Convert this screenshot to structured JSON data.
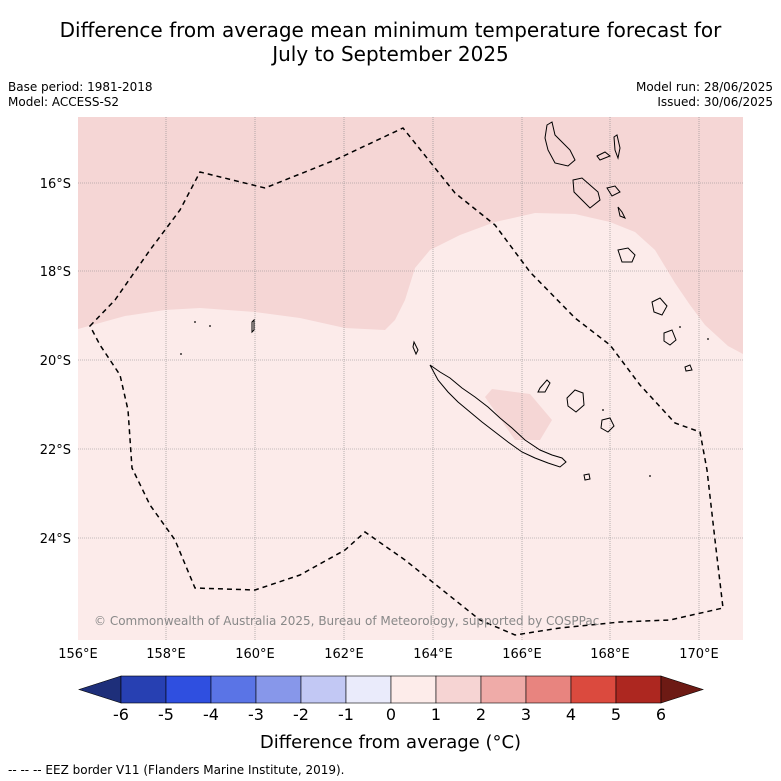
{
  "header": {
    "title_line1": "Difference from average mean minimum temperature forecast for",
    "title_line2": "July to September 2025"
  },
  "meta_left": {
    "base_period": "Base period: 1981-2018",
    "model": "Model: ACCESS-S2"
  },
  "meta_right": {
    "model_run": "Model run: 28/06/2025",
    "issued": "Issued: 30/06/2025"
  },
  "map": {
    "lon_labels": [
      "156°E",
      "158°E",
      "160°E",
      "162°E",
      "164°E",
      "166°E",
      "168°E",
      "170°E"
    ],
    "lat_labels": [
      "16°S",
      "18°S",
      "20°S",
      "22°S",
      "24°S"
    ],
    "copyright": "© Commonwealth of Australia 2025, Bureau of Meteorology, supported by COSPPac",
    "colors": {
      "anomaly_0_1": "#fcebea",
      "anomaly_1_2": "#f5d6d5",
      "ocean_frame": "#777777"
    }
  },
  "colorbar": {
    "ticks": [
      "-6",
      "-5",
      "-4",
      "-3",
      "-2",
      "-1",
      "0",
      "1",
      "2",
      "3",
      "4",
      "5",
      "6"
    ],
    "colors": [
      "#1e2f7a",
      "#2740b2",
      "#2f4fe0",
      "#5a74e6",
      "#8797ea",
      "#c2c8f4",
      "#eaebfb",
      "#fdecea",
      "#f6d4d3",
      "#efaba8",
      "#e8847f",
      "#db4a3e",
      "#ad2720",
      "#6d1a14"
    ],
    "label": "Difference from average (°C)"
  },
  "footer": {
    "eez_legend": "-- -- -- EEZ border V11 (Flanders Marine Institute, 2019)."
  }
}
